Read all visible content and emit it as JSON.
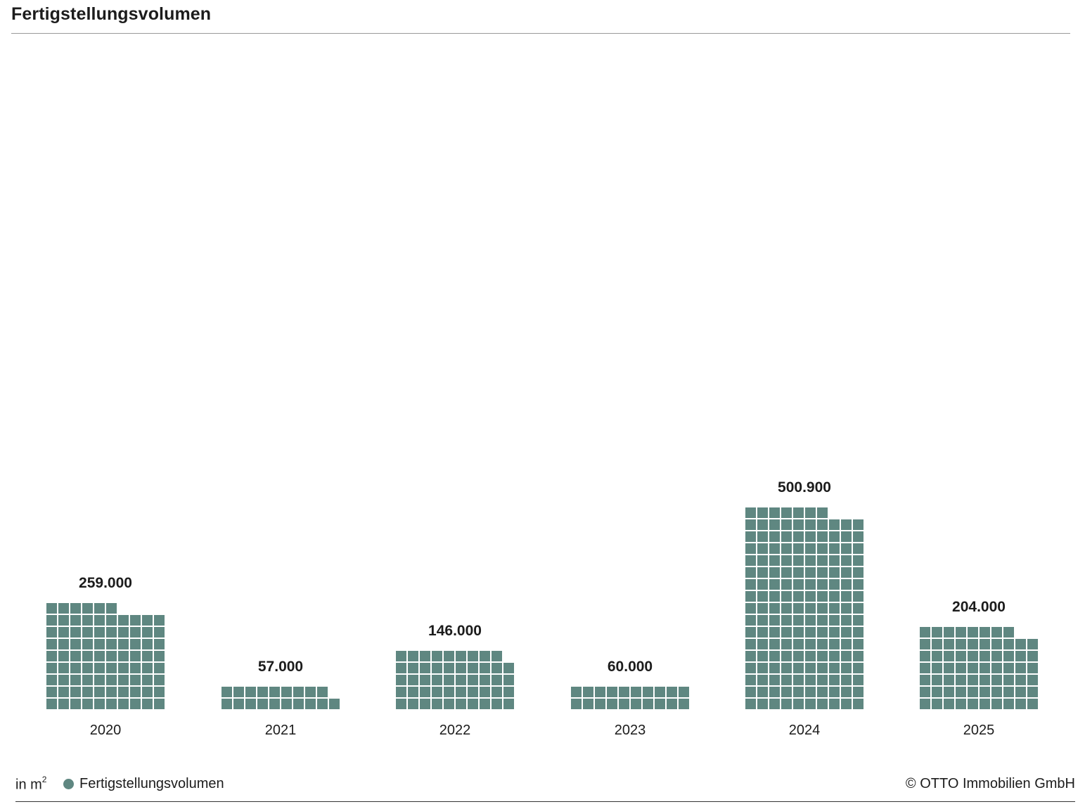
{
  "title": "Fertigstellungsvolumen",
  "unit_prefix": "in m",
  "unit_sup": "2",
  "legend_label": "Fertigstellungsvolumen",
  "copyright": "© OTTO Immobilien GmbH",
  "colors": {
    "bar": "#5f8781",
    "text": "#1c1c1c"
  },
  "chart_data": {
    "type": "bar",
    "style": "waffle",
    "categories": [
      "2020",
      "2021",
      "2022",
      "2023",
      "2024",
      "2025"
    ],
    "values": [
      259000,
      57000,
      146000,
      60000,
      500900,
      204000
    ],
    "value_labels": [
      "259.000",
      "57.000",
      "146.000",
      "60.000",
      "500.900",
      "204.000"
    ],
    "series": [
      {
        "name": "Fertigstellungsvolumen",
        "values": [
          259000,
          57000,
          146000,
          60000,
          500900,
          204000
        ]
      }
    ],
    "ylabel": "in m²",
    "grid": false,
    "legend": "bottom-left"
  }
}
